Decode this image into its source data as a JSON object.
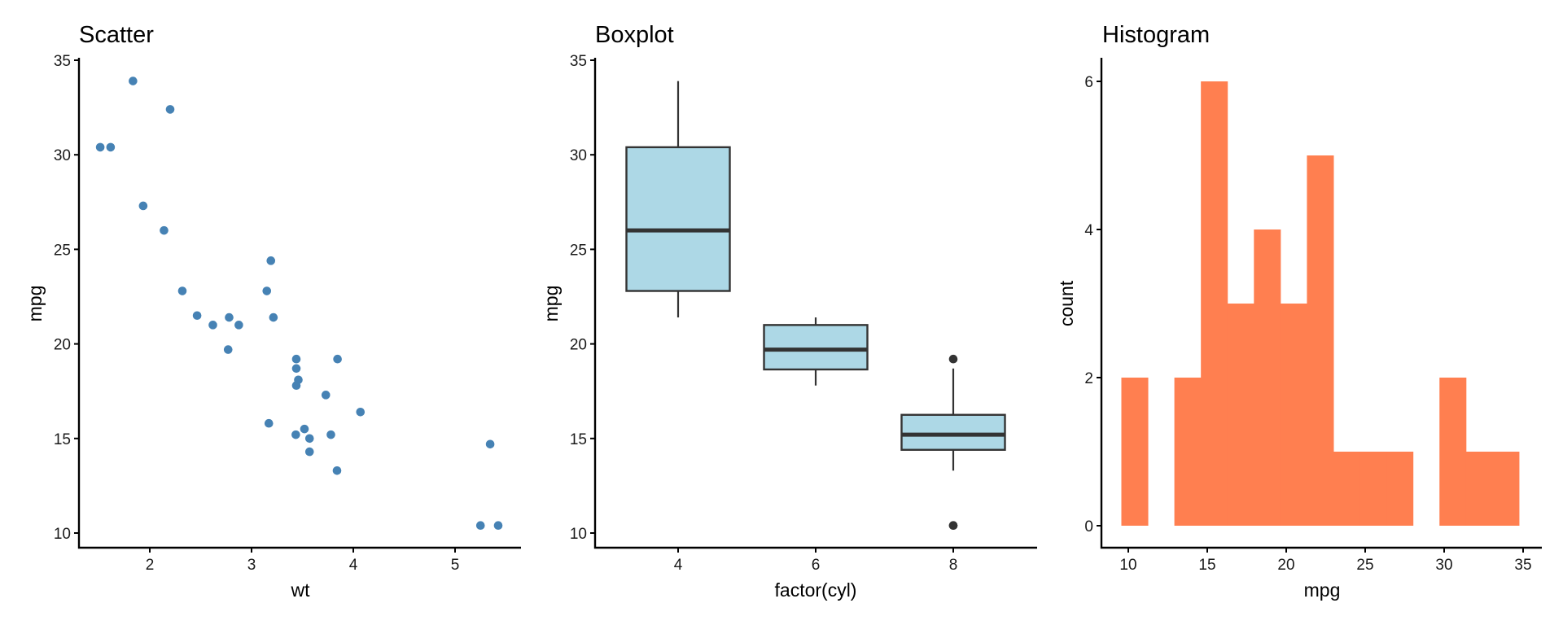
{
  "chart_data": [
    {
      "type": "scatter",
      "title": "Scatter",
      "xlabel": "wt",
      "ylabel": "mpg",
      "xlim": [
        1.33,
        5.62
      ],
      "ylim": [
        9.225,
        35.075
      ],
      "xticks": [
        2,
        3,
        4,
        5
      ],
      "yticks": [
        10,
        15,
        20,
        25,
        30,
        35
      ],
      "grid": false,
      "point_color": "#4682B4",
      "points": [
        {
          "x": 2.62,
          "y": 21.0
        },
        {
          "x": 2.875,
          "y": 21.0
        },
        {
          "x": 2.32,
          "y": 22.8
        },
        {
          "x": 3.215,
          "y": 21.4
        },
        {
          "x": 3.44,
          "y": 18.7
        },
        {
          "x": 3.46,
          "y": 18.1
        },
        {
          "x": 3.57,
          "y": 14.3
        },
        {
          "x": 3.19,
          "y": 24.4
        },
        {
          "x": 3.15,
          "y": 22.8
        },
        {
          "x": 3.44,
          "y": 19.2
        },
        {
          "x": 3.44,
          "y": 17.8
        },
        {
          "x": 4.07,
          "y": 16.4
        },
        {
          "x": 3.73,
          "y": 17.3
        },
        {
          "x": 3.78,
          "y": 15.2
        },
        {
          "x": 5.25,
          "y": 10.4
        },
        {
          "x": 5.424,
          "y": 10.4
        },
        {
          "x": 5.345,
          "y": 14.7
        },
        {
          "x": 2.2,
          "y": 32.4
        },
        {
          "x": 1.615,
          "y": 30.4
        },
        {
          "x": 1.835,
          "y": 33.9
        },
        {
          "x": 2.465,
          "y": 21.5
        },
        {
          "x": 3.52,
          "y": 15.5
        },
        {
          "x": 3.435,
          "y": 15.2
        },
        {
          "x": 3.84,
          "y": 13.3
        },
        {
          "x": 3.845,
          "y": 19.2
        },
        {
          "x": 1.935,
          "y": 27.3
        },
        {
          "x": 2.14,
          "y": 26.0
        },
        {
          "x": 1.513,
          "y": 30.4
        },
        {
          "x": 3.17,
          "y": 15.8
        },
        {
          "x": 2.77,
          "y": 19.7
        },
        {
          "x": 3.57,
          "y": 15.0
        },
        {
          "x": 2.78,
          "y": 21.4
        }
      ]
    },
    {
      "type": "boxplot",
      "title": "Boxplot",
      "xlabel": "factor(cyl)",
      "ylabel": "mpg",
      "ylim": [
        9.225,
        35.075
      ],
      "yticks": [
        10,
        15,
        20,
        25,
        30,
        35
      ],
      "categories": [
        "4",
        "6",
        "8"
      ],
      "grid": false,
      "box_fill": "#ADD8E6",
      "box_outline": "#333333",
      "boxes": [
        {
          "category": "4",
          "lower_whisker": 21.4,
          "q1": 22.8,
          "median": 26.0,
          "q3": 30.4,
          "upper_whisker": 33.9,
          "outliers": []
        },
        {
          "category": "6",
          "lower_whisker": 17.8,
          "q1": 18.65,
          "median": 19.7,
          "q3": 21.0,
          "upper_whisker": 21.4,
          "outliers": []
        },
        {
          "category": "8",
          "lower_whisker": 13.3,
          "q1": 14.4,
          "median": 15.2,
          "q3": 16.25,
          "upper_whisker": 18.7,
          "outliers": [
            19.2,
            10.4,
            10.4
          ]
        }
      ]
    },
    {
      "type": "bar",
      "subtype": "histogram",
      "title": "Histogram",
      "xlabel": "mpg",
      "ylabel": "count",
      "xlim": [
        8.3,
        36.0
      ],
      "ylim": [
        -0.3,
        6.3
      ],
      "xticks": [
        10,
        15,
        20,
        25,
        30,
        35
      ],
      "yticks": [
        0,
        2,
        4,
        6
      ],
      "grid": false,
      "bar_color": "#FF7F50",
      "bin_edges": [
        9.561,
        11.239,
        12.918,
        14.596,
        16.275,
        17.954,
        19.632,
        21.311,
        22.989,
        24.668,
        26.346,
        28.025,
        29.704,
        31.382,
        33.061,
        34.739
      ],
      "counts": [
        2,
        0,
        2,
        6,
        3,
        4,
        3,
        5,
        1,
        1,
        1,
        0,
        2,
        1,
        1
      ]
    }
  ]
}
